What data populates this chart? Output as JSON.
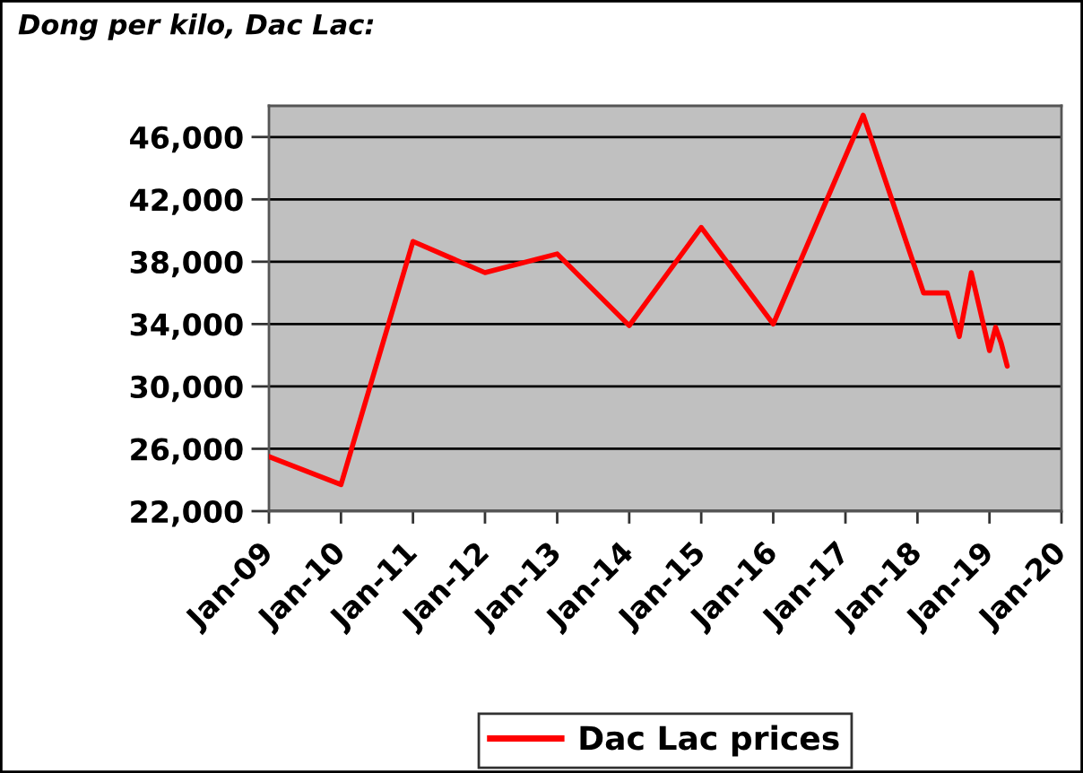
{
  "chart_data": {
    "type": "line",
    "title": "Dong per kilo, Dac Lac:",
    "x": [
      "2009-01",
      "2010-01",
      "2011-01",
      "2012-01",
      "2013-01",
      "2014-01",
      "2015-01",
      "2016-01",
      "2017-04",
      "2018-02",
      "2018-06",
      "2018-08",
      "2018-10",
      "2019-01",
      "2019-02",
      "2019-03",
      "2019-04"
    ],
    "series": [
      {
        "name": "Dac Lac prices",
        "color": "#ff0000",
        "values": [
          25500,
          23700,
          39300,
          37300,
          38500,
          33900,
          40200,
          34000,
          47400,
          36000,
          36000,
          33200,
          37300,
          32300,
          33800,
          32800,
          31300
        ]
      }
    ],
    "xlim": [
      "2009-01",
      "2020-01"
    ],
    "xticks": [
      {
        "value": "2009-01",
        "label": "Jan-09"
      },
      {
        "value": "2010-01",
        "label": "Jan-10"
      },
      {
        "value": "2011-01",
        "label": "Jan-11"
      },
      {
        "value": "2012-01",
        "label": "Jan-12"
      },
      {
        "value": "2013-01",
        "label": "Jan-13"
      },
      {
        "value": "2014-01",
        "label": "Jan-14"
      },
      {
        "value": "2015-01",
        "label": "Jan-15"
      },
      {
        "value": "2016-01",
        "label": "Jan-16"
      },
      {
        "value": "2017-01",
        "label": "Jan-17"
      },
      {
        "value": "2018-01",
        "label": "Jan-18"
      },
      {
        "value": "2019-01",
        "label": "Jan-19"
      },
      {
        "value": "2020-01",
        "label": "Jan-20"
      }
    ],
    "ylim": [
      22000,
      48000
    ],
    "yticks": [
      {
        "value": 22000,
        "label": "22,000"
      },
      {
        "value": 26000,
        "label": "26,000"
      },
      {
        "value": 30000,
        "label": "30,000"
      },
      {
        "value": 34000,
        "label": "34,000"
      },
      {
        "value": 38000,
        "label": "38,000"
      },
      {
        "value": 42000,
        "label": "42,000"
      },
      {
        "value": 46000,
        "label": "46,000"
      }
    ],
    "grid": "y",
    "legend": "bottom",
    "line_style": "solid"
  }
}
